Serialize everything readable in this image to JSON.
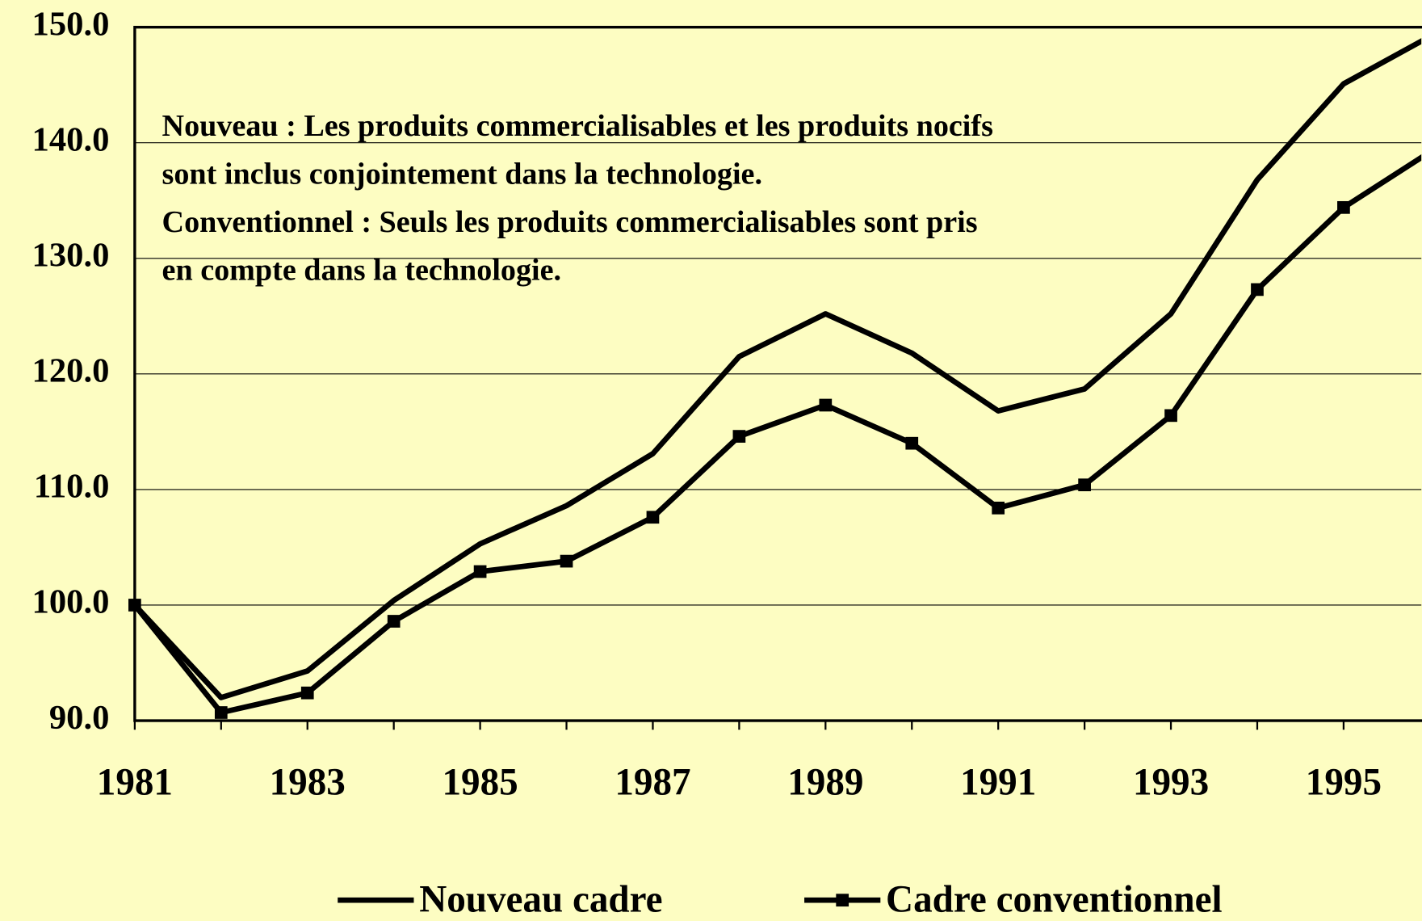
{
  "chart_data": {
    "type": "line",
    "annotation": [
      "Nouveau : Les produits commercialisables et les produits nocifs",
      "sont inclus conjointement dans la technologie.",
      "Conventionnel : Seuls les produits commercialisables sont pris",
      "en compte dans la technologie."
    ],
    "categories": [
      "1981",
      null,
      "1983",
      null,
      "1985",
      null,
      "1987",
      null,
      "1989",
      null,
      "1991",
      null,
      "1993",
      null,
      "1995",
      null
    ],
    "series": [
      {
        "name": "Nouveau cadre",
        "color": "#000000",
        "marker": "none",
        "values": [
          100.0,
          92.0,
          94.3,
          100.4,
          105.3,
          108.6,
          113.1,
          121.5,
          125.2,
          121.8,
          116.8,
          118.7,
          125.2,
          136.8,
          145.1,
          149.2
        ]
      },
      {
        "name": "Cadre conventionnel",
        "color": "#000000",
        "marker": "square",
        "values": [
          100.0,
          90.7,
          92.4,
          98.6,
          102.9,
          103.8,
          107.6,
          114.6,
          117.3,
          114.0,
          108.4,
          110.4,
          116.4,
          127.3,
          134.4,
          139.2
        ]
      }
    ],
    "ylim": [
      90,
      150
    ],
    "yticks": [
      {
        "value": 90,
        "label": "90.0"
      },
      {
        "value": 100,
        "label": "100.0"
      },
      {
        "value": 110,
        "label": "110.0"
      },
      {
        "value": 120,
        "label": "120.0"
      },
      {
        "value": 130,
        "label": "130.0"
      },
      {
        "value": 140,
        "label": "140.0"
      },
      {
        "value": 150,
        "label": "150.0"
      }
    ],
    "grid": true,
    "legend": "bottom"
  }
}
